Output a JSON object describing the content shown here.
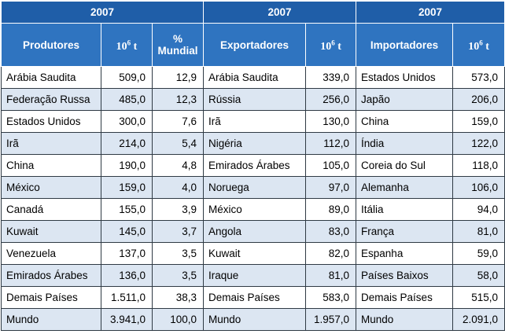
{
  "header": {
    "years": [
      "2007",
      "2007",
      "2007"
    ],
    "col_produtores": "Produtores",
    "col_unit_base": "10",
    "col_unit_exp": "6",
    "col_unit_t": " t",
    "col_pct": "% Mundial",
    "col_exportadores": "Exportadores",
    "col_importadores": "Importadores"
  },
  "rows": [
    {
      "p": "Arábia Saudita",
      "pv": "509,0",
      "pp": "12,9",
      "e": "Arábia Saudita",
      "ev": "339,0",
      "i": "Estados Unidos",
      "iv": "573,0"
    },
    {
      "p": "Federação Russa",
      "pv": "485,0",
      "pp": "12,3",
      "e": "Rússia",
      "ev": "256,0",
      "i": "Japão",
      "iv": "206,0"
    },
    {
      "p": "Estados Unidos",
      "pv": "300,0",
      "pp": "7,6",
      "e": "Irã",
      "ev": "130,0",
      "i": "China",
      "iv": "159,0"
    },
    {
      "p": "Irã",
      "pv": "214,0",
      "pp": "5,4",
      "e": "Nigéria",
      "ev": "112,0",
      "i": "Índia",
      "iv": "122,0"
    },
    {
      "p": "China",
      "pv": "190,0",
      "pp": "4,8",
      "e": "Emirados Árabes",
      "ev": "105,0",
      "i": "Coreia do Sul",
      "iv": "118,0"
    },
    {
      "p": "México",
      "pv": "159,0",
      "pp": "4,0",
      "e": "Noruega",
      "ev": "97,0",
      "i": "Alemanha",
      "iv": "106,0"
    },
    {
      "p": "Canadá",
      "pv": "155,0",
      "pp": "3,9",
      "e": "México",
      "ev": "89,0",
      "i": "Itália",
      "iv": "94,0"
    },
    {
      "p": "Kuwait",
      "pv": "145,0",
      "pp": "3,7",
      "e": "Angola",
      "ev": "83,0",
      "i": "França",
      "iv": "81,0"
    },
    {
      "p": "Venezuela",
      "pv": "137,0",
      "pp": "3,5",
      "e": "Kuwait",
      "ev": "82,0",
      "i": "Espanha",
      "iv": "59,0"
    },
    {
      "p": "Emirados Árabes",
      "pv": "136,0",
      "pp": "3,5",
      "e": "Iraque",
      "ev": "81,0",
      "i": "Países Baixos",
      "iv": "58,0"
    },
    {
      "p": "Demais Países",
      "pv": "1.511,0",
      "pp": "38,3",
      "e": "Demais Países",
      "ev": "583,0",
      "i": "Demais Países",
      "iv": "515,0"
    },
    {
      "p": "Mundo",
      "pv": "3.941,0",
      "pp": "100,0",
      "e": "Mundo",
      "ev": "1.957,0",
      "i": "Mundo",
      "iv": "2.091,0"
    }
  ],
  "colors": {
    "year_bg": "#1f5ea8",
    "header_bg": "#2f74c0",
    "stripe_bg": "#dce6f2"
  }
}
